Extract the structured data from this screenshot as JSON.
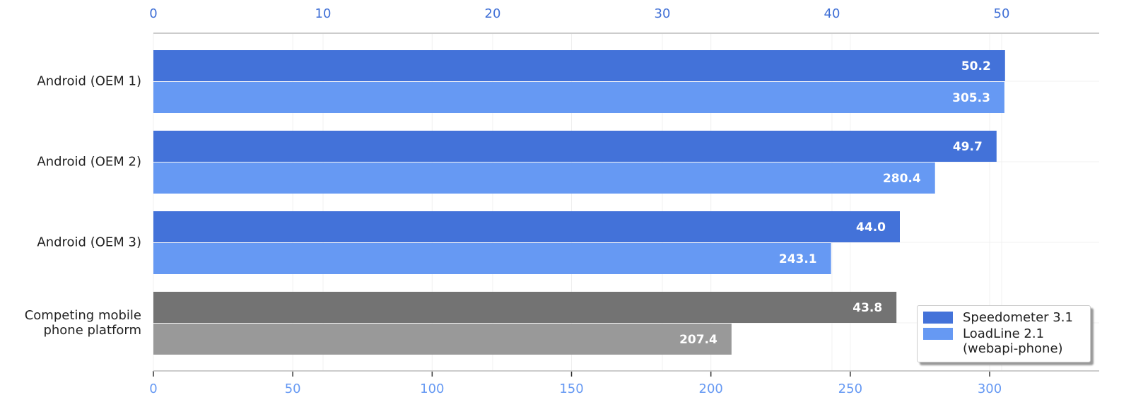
{
  "chart_data": {
    "type": "bar",
    "orientation": "horizontal",
    "categories": [
      "Android (OEM 1)",
      "Android (OEM 2)",
      "Android (OEM 3)",
      "Competing mobile phone platform"
    ],
    "series": [
      {
        "name": "Speedometer 3.1",
        "color": "#4372d9",
        "colors": [
          "#4372d9",
          "#4372d9",
          "#4372d9",
          "#737373"
        ],
        "axis": "x",
        "values": [
          50.2,
          49.7,
          44.0,
          43.8
        ],
        "value_labels": [
          "50.2",
          "49.7",
          "44.0",
          "43.8"
        ]
      },
      {
        "name": "LoadLine 2.1 (webapi-phone)",
        "color": "#6699f3",
        "colors": [
          "#6699f3",
          "#6699f3",
          "#6699f3",
          "#999999"
        ],
        "axis": "x2",
        "values": [
          305.3,
          280.4,
          243.1,
          207.4
        ],
        "value_labels": [
          "305.3",
          "280.4",
          "243.1",
          "207.4"
        ]
      }
    ],
    "xlim": [
      0,
      55.75
    ],
    "xticks": [
      0,
      10,
      20,
      30,
      40,
      50
    ],
    "xtick_color": "#3f6fd6",
    "x2lim": [
      0,
      339.3
    ],
    "x2ticks": [
      0,
      50,
      100,
      150,
      200,
      250,
      300
    ],
    "x2tick_color": "#6699f3",
    "grid": true,
    "legend": "lower right"
  }
}
